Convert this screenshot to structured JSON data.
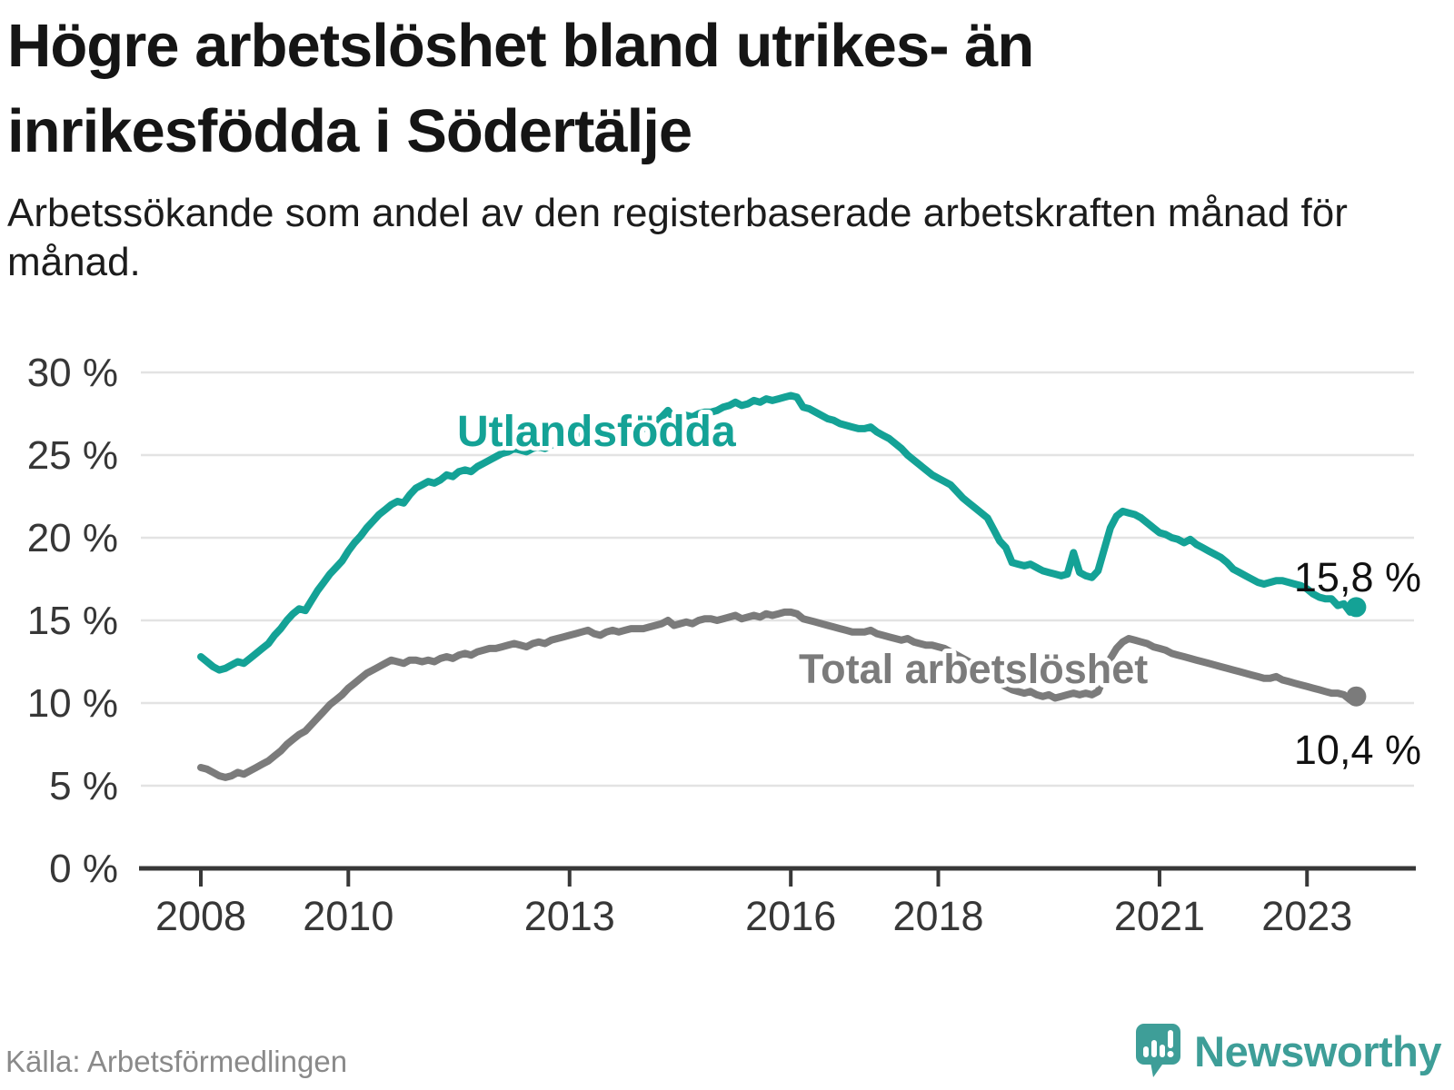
{
  "header": {
    "title": "Högre arbetslöshet bland utrikes- än inrikesfödda i Södertälje",
    "subtitle": "Arbetssökande som andel av den registerbaserade arbetskraften månad för månad."
  },
  "footer": {
    "source": "Källa: Arbetsförmedlingen",
    "logo_text": "Newsworthy"
  },
  "colors": {
    "accent_teal": "#14A296",
    "series_gray": "#7B7B7B",
    "logo_teal": "#3E9E98",
    "grid": "#E3E3E3",
    "axis": "#383838",
    "tick_text": "#373737",
    "value_text": "#111111",
    "title_text": "#151515",
    "source_text": "#8A8A8A"
  },
  "chart_data": {
    "type": "line",
    "title": "Högre arbetslöshet bland utrikes- än inrikesfödda i Södertälje",
    "subtitle": "Arbetssökande som andel av den registerbaserade arbetskraften månad för månad.",
    "unit": "%",
    "frequency": "monthly",
    "start": "2008-01",
    "end": "2023-09",
    "ylim": [
      0,
      30
    ],
    "grid": "horizontal",
    "legend_position": "inline-labels",
    "y_ticks": [
      30,
      25,
      20,
      15,
      10,
      5,
      0
    ],
    "y_tick_suffix": " %",
    "x_ticks": [
      2008,
      2010,
      2013,
      2016,
      2018,
      2021,
      2023
    ],
    "series": [
      {
        "name": "Utlandsfödda",
        "color": "#14A296",
        "end_label": "15,8 %",
        "last_value": 15.8,
        "values": [
          12.8,
          12.5,
          12.2,
          12.0,
          12.1,
          12.3,
          12.5,
          12.4,
          12.7,
          13.0,
          13.3,
          13.6,
          14.1,
          14.5,
          15.0,
          15.4,
          15.7,
          15.6,
          16.2,
          16.8,
          17.3,
          17.8,
          18.2,
          18.6,
          19.2,
          19.7,
          20.1,
          20.6,
          21.0,
          21.4,
          21.7,
          22.0,
          22.2,
          22.1,
          22.6,
          23.0,
          23.2,
          23.4,
          23.3,
          23.5,
          23.8,
          23.7,
          24.0,
          24.1,
          24.0,
          24.3,
          24.5,
          24.7,
          24.9,
          25.1,
          25.2,
          25.4,
          25.3,
          25.2,
          25.4,
          25.5,
          25.4,
          25.6,
          25.7,
          25.8,
          25.9,
          26.0,
          26.2,
          26.3,
          26.1,
          26.0,
          26.2,
          26.4,
          26.3,
          26.4,
          26.5,
          26.6,
          26.6,
          26.8,
          27.0,
          27.3,
          27.7,
          27.2,
          27.3,
          27.4,
          27.3,
          27.5,
          27.6,
          27.6,
          27.7,
          27.9,
          28.0,
          28.2,
          28.0,
          28.1,
          28.3,
          28.2,
          28.4,
          28.3,
          28.4,
          28.5,
          28.6,
          28.5,
          27.9,
          27.8,
          27.6,
          27.4,
          27.2,
          27.1,
          26.9,
          26.8,
          26.7,
          26.6,
          26.6,
          26.7,
          26.4,
          26.2,
          26.0,
          25.7,
          25.4,
          25.0,
          24.7,
          24.4,
          24.1,
          23.8,
          23.6,
          23.4,
          23.2,
          22.8,
          22.4,
          22.1,
          21.8,
          21.5,
          21.2,
          20.5,
          19.8,
          19.4,
          18.5,
          18.4,
          18.3,
          18.4,
          18.2,
          18.0,
          17.9,
          17.8,
          17.7,
          17.8,
          19.1,
          17.9,
          17.7,
          17.6,
          18.0,
          19.3,
          20.6,
          21.3,
          21.6,
          21.5,
          21.4,
          21.2,
          20.9,
          20.6,
          20.3,
          20.2,
          20.0,
          19.9,
          19.7,
          19.9,
          19.6,
          19.4,
          19.2,
          19.0,
          18.8,
          18.5,
          18.1,
          17.9,
          17.7,
          17.5,
          17.3,
          17.2,
          17.3,
          17.4,
          17.4,
          17.3,
          17.2,
          17.1,
          16.9,
          16.6,
          16.4,
          16.3,
          16.3,
          15.9,
          16.0,
          15.5,
          15.8
        ]
      },
      {
        "name": "Total arbetslöshet",
        "color": "#7B7B7B",
        "end_label": "10,4 %",
        "last_value": 10.4,
        "values": [
          6.1,
          6.0,
          5.8,
          5.6,
          5.5,
          5.6,
          5.8,
          5.7,
          5.9,
          6.1,
          6.3,
          6.5,
          6.8,
          7.1,
          7.5,
          7.8,
          8.1,
          8.3,
          8.7,
          9.1,
          9.5,
          9.9,
          10.2,
          10.5,
          10.9,
          11.2,
          11.5,
          11.8,
          12.0,
          12.2,
          12.4,
          12.6,
          12.5,
          12.4,
          12.6,
          12.6,
          12.5,
          12.6,
          12.5,
          12.7,
          12.8,
          12.7,
          12.9,
          13.0,
          12.9,
          13.1,
          13.2,
          13.3,
          13.3,
          13.4,
          13.5,
          13.6,
          13.5,
          13.4,
          13.6,
          13.7,
          13.6,
          13.8,
          13.9,
          14.0,
          14.1,
          14.2,
          14.3,
          14.4,
          14.2,
          14.1,
          14.3,
          14.4,
          14.3,
          14.4,
          14.5,
          14.5,
          14.5,
          14.6,
          14.7,
          14.8,
          15.0,
          14.7,
          14.8,
          14.9,
          14.8,
          15.0,
          15.1,
          15.1,
          15.0,
          15.1,
          15.2,
          15.3,
          15.1,
          15.2,
          15.3,
          15.2,
          15.4,
          15.3,
          15.4,
          15.5,
          15.5,
          15.4,
          15.1,
          15.0,
          14.9,
          14.8,
          14.7,
          14.6,
          14.5,
          14.4,
          14.3,
          14.3,
          14.3,
          14.4,
          14.2,
          14.1,
          14.0,
          13.9,
          13.8,
          13.9,
          13.7,
          13.6,
          13.5,
          13.5,
          13.4,
          13.3,
          13.1,
          12.9,
          12.7,
          12.5,
          12.3,
          12.1,
          11.8,
          11.5,
          11.2,
          11.0,
          10.8,
          10.7,
          10.6,
          10.7,
          10.5,
          10.4,
          10.5,
          10.3,
          10.4,
          10.5,
          10.6,
          10.5,
          10.6,
          10.5,
          10.7,
          11.6,
          12.7,
          13.3,
          13.7,
          13.9,
          13.8,
          13.7,
          13.6,
          13.4,
          13.3,
          13.2,
          13.0,
          12.9,
          12.8,
          12.7,
          12.6,
          12.5,
          12.4,
          12.3,
          12.2,
          12.1,
          12.0,
          11.9,
          11.8,
          11.7,
          11.6,
          11.5,
          11.5,
          11.6,
          11.4,
          11.3,
          11.2,
          11.1,
          11.0,
          10.9,
          10.8,
          10.7,
          10.6,
          10.6,
          10.5,
          10.2,
          10.4
        ]
      }
    ]
  }
}
